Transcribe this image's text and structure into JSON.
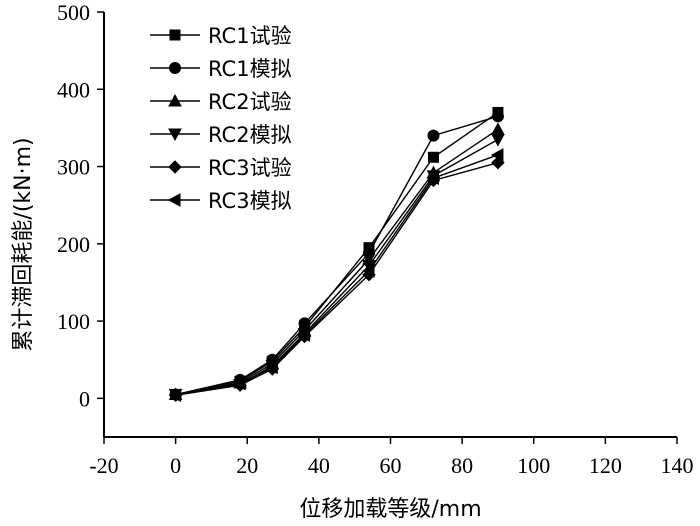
{
  "chart_data": {
    "type": "line",
    "title": "",
    "xlabel": "位移加载等级/mm",
    "ylabel": "累计滞回耗能/(kN·m)",
    "xlim": [
      -20,
      140
    ],
    "ylim": [
      -50,
      500
    ],
    "xticks": [
      -20,
      0,
      20,
      40,
      60,
      80,
      100,
      120,
      140
    ],
    "yticks": [
      0,
      100,
      200,
      300,
      400,
      500
    ],
    "grid": false,
    "legend_position": "top-left",
    "x": [
      0,
      18,
      27,
      36,
      54,
      72,
      90
    ],
    "series": [
      {
        "name": "RC1试验",
        "marker": "square",
        "values": [
          5,
          22,
          48,
          92,
          195,
          312,
          370
        ]
      },
      {
        "name": "RC1模拟",
        "marker": "circle",
        "values": [
          5,
          24,
          50,
          97,
          188,
          340,
          365
        ]
      },
      {
        "name": "RC2试验",
        "marker": "triangle-up",
        "values": [
          5,
          20,
          45,
          88,
          180,
          292,
          348
        ]
      },
      {
        "name": "RC2模拟",
        "marker": "triangle-down",
        "values": [
          5,
          18,
          42,
          84,
          172,
          288,
          335
        ]
      },
      {
        "name": "RC3试验",
        "marker": "diamond",
        "values": [
          4,
          17,
          38,
          80,
          160,
          282,
          305
        ]
      },
      {
        "name": "RC3模拟",
        "marker": "triangle-left",
        "values": [
          4,
          19,
          40,
          82,
          165,
          285,
          315
        ]
      }
    ]
  }
}
